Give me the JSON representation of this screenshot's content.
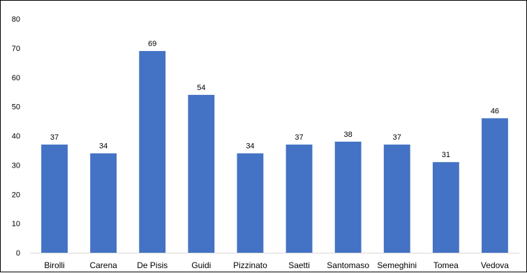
{
  "chart_data": {
    "type": "bar",
    "title": "",
    "xlabel": "",
    "ylabel": "",
    "categories": [
      "Birolli",
      "Carena",
      "De Pisis",
      "Guidi",
      "Pizzinato",
      "Saetti",
      "Santomaso",
      "Semeghini",
      "Tomea",
      "Vedova"
    ],
    "values": [
      37,
      34,
      69,
      54,
      34,
      37,
      38,
      37,
      31,
      46
    ],
    "ylim": [
      0,
      80
    ],
    "yticks": [
      0,
      10,
      20,
      30,
      40,
      50,
      60,
      70,
      80
    ],
    "grid": false,
    "legend": "none",
    "data_labels": true,
    "bar_color": "#4472C4"
  }
}
